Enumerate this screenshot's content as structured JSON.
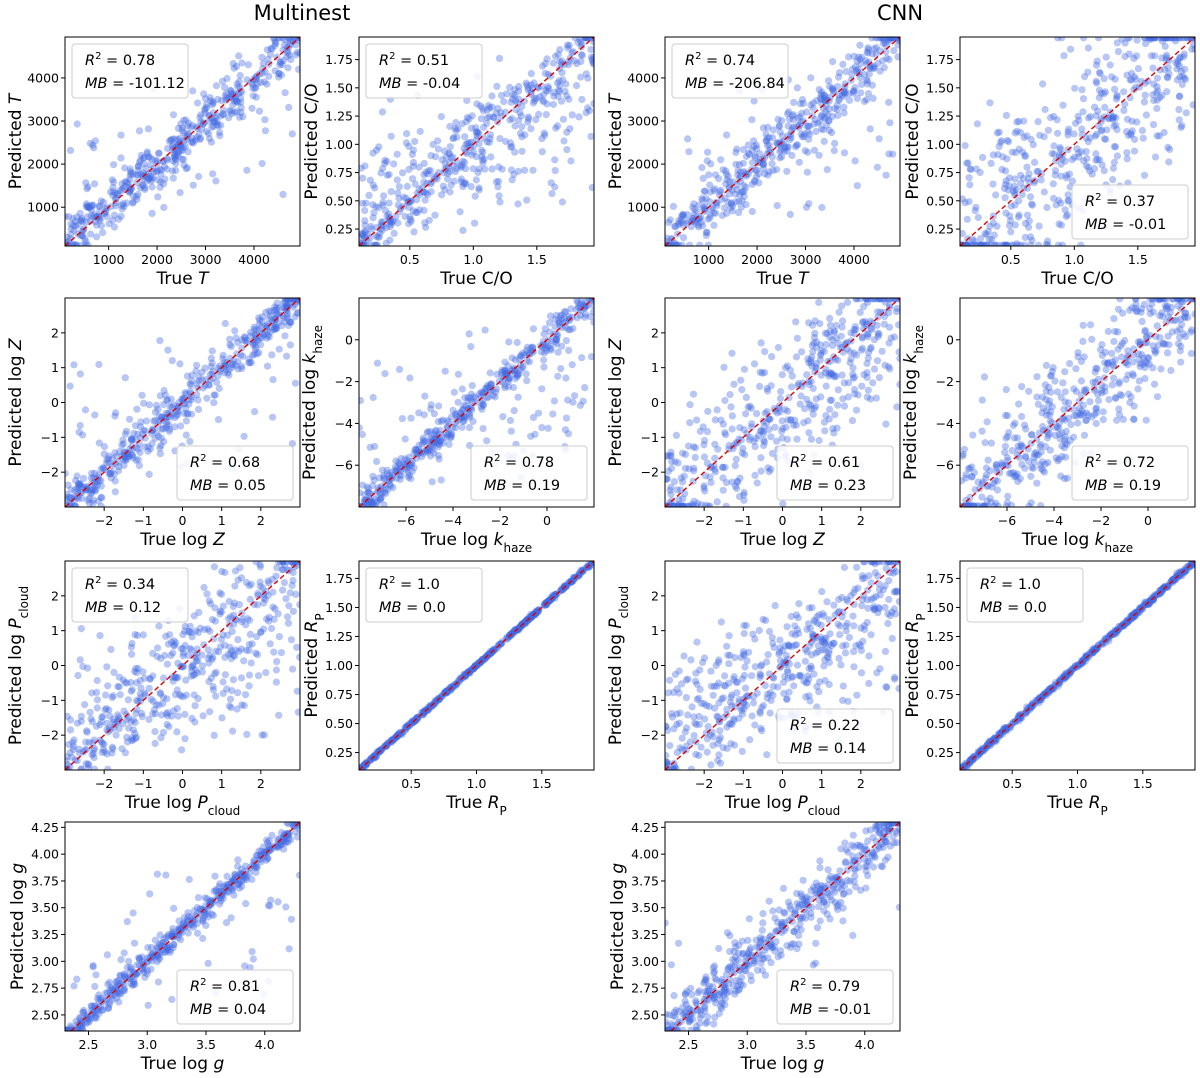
{
  "figure": {
    "group_titles": [
      "Multinest",
      "CNN"
    ],
    "point_color": "#4169e1",
    "diagonal_color": "#dd0000"
  },
  "chart_data": [
    {
      "type": "scatter",
      "group": "Multinest",
      "xlabel": "True T",
      "ylabel": "Predicted T",
      "xlim": [
        100,
        4950
      ],
      "ylim": [
        100,
        4950
      ],
      "xticks": [
        1000,
        2000,
        3000,
        4000
      ],
      "yticks": [
        1000,
        2000,
        3000,
        4000
      ],
      "tick_decimals": 0,
      "stats": {
        "r2": "0.78",
        "mb": "-101.12",
        "position": "top-left"
      },
      "spread": 0.06,
      "outliers": 0.14
    },
    {
      "type": "scatter",
      "group": "Multinest",
      "xlabel": "True C/O",
      "ylabel": "Predicted C/O",
      "xlim": [
        0.1,
        1.95
      ],
      "ylim": [
        0.1,
        1.95
      ],
      "xticks": [
        0.5,
        1.0,
        1.5
      ],
      "yticks": [
        0.25,
        0.5,
        0.75,
        1.0,
        1.25,
        1.5,
        1.75
      ],
      "tick_decimals": 2,
      "xtick_decimals": 1,
      "stats": {
        "r2": "0.51",
        "mb": "-0.04",
        "position": "top-left"
      },
      "spread": 0.08,
      "outliers": 0.35
    },
    {
      "type": "scatter",
      "group": "CNN",
      "xlabel": "True T",
      "ylabel": "Predicted T",
      "xlim": [
        100,
        4950
      ],
      "ylim": [
        100,
        4950
      ],
      "xticks": [
        1000,
        2000,
        3000,
        4000
      ],
      "yticks": [
        1000,
        2000,
        3000,
        4000
      ],
      "tick_decimals": 0,
      "stats": {
        "r2": "0.74",
        "mb": "-206.84",
        "position": "top-left"
      },
      "spread": 0.07,
      "outliers": 0.14
    },
    {
      "type": "scatter",
      "group": "CNN",
      "xlabel": "True C/O",
      "ylabel": "Predicted C/O",
      "xlim": [
        0.1,
        1.95
      ],
      "ylim": [
        0.1,
        1.95
      ],
      "xticks": [
        0.5,
        1.0,
        1.5
      ],
      "yticks": [
        0.25,
        0.5,
        0.75,
        1.0,
        1.25,
        1.5,
        1.75
      ],
      "tick_decimals": 2,
      "xtick_decimals": 1,
      "stats": {
        "r2": "0.37",
        "mb": "-0.01",
        "position": "bottom-right"
      },
      "spread": 0.22,
      "outliers": 0.1
    },
    {
      "type": "scatter",
      "group": "Multinest",
      "xlabel": "True log Z",
      "ylabel": "Predicted log Z",
      "xlim": [
        -3,
        3
      ],
      "ylim": [
        -3,
        3
      ],
      "xticks": [
        -2,
        -1,
        0,
        1,
        2
      ],
      "yticks": [
        -2,
        -1,
        0,
        1,
        2
      ],
      "tick_decimals": 0,
      "stats": {
        "r2": "0.68",
        "mb": "0.05",
        "position": "bottom-right"
      },
      "spread": 0.05,
      "outliers": 0.18
    },
    {
      "type": "scatter",
      "group": "Multinest",
      "xlabel": "True log k_haze",
      "ylabel": "Predicted log k_haze",
      "xlim": [
        -8,
        2
      ],
      "ylim": [
        -8,
        2
      ],
      "xticks": [
        -6,
        -4,
        -2,
        0
      ],
      "yticks": [
        -6,
        -4,
        -2,
        0
      ],
      "tick_decimals": 0,
      "stats": {
        "r2": "0.78",
        "mb": "0.19",
        "position": "bottom-right"
      },
      "spread": 0.04,
      "outliers": 0.2
    },
    {
      "type": "scatter",
      "group": "CNN",
      "xlabel": "True log Z",
      "ylabel": "Predicted log Z",
      "xlim": [
        -3,
        3
      ],
      "ylim": [
        -3,
        3
      ],
      "xticks": [
        -2,
        -1,
        0,
        1,
        2
      ],
      "yticks": [
        -2,
        -1,
        0,
        1,
        2
      ],
      "tick_decimals": 0,
      "stats": {
        "r2": "0.61",
        "mb": "0.23",
        "position": "bottom-right"
      },
      "spread": 0.16,
      "outliers": 0.08
    },
    {
      "type": "scatter",
      "group": "CNN",
      "xlabel": "True log k_haze",
      "ylabel": "Predicted log k_haze",
      "xlim": [
        -8,
        2
      ],
      "ylim": [
        -8,
        2
      ],
      "xticks": [
        -6,
        -4,
        -2,
        0
      ],
      "yticks": [
        -6,
        -4,
        -2,
        0
      ],
      "tick_decimals": 0,
      "stats": {
        "r2": "0.72",
        "mb": "0.19",
        "position": "bottom-right"
      },
      "spread": 0.14,
      "outliers": 0.06
    },
    {
      "type": "scatter",
      "group": "Multinest",
      "xlabel": "True log P_cloud",
      "ylabel": "Predicted log P_cloud",
      "xlim": [
        -3,
        3
      ],
      "ylim": [
        -3,
        3
      ],
      "xticks": [
        -2,
        -1,
        0,
        1,
        2
      ],
      "yticks": [
        -2,
        -1,
        0,
        1,
        2
      ],
      "tick_decimals": 0,
      "stats": {
        "r2": "0.34",
        "mb": "0.12",
        "position": "top-left"
      },
      "spread": 0.12,
      "outliers": 0.4
    },
    {
      "type": "scatter",
      "group": "Multinest",
      "xlabel": "True R_P",
      "ylabel": "Predicted R_P",
      "xlim": [
        0.1,
        1.9
      ],
      "ylim": [
        0.1,
        1.9
      ],
      "xticks": [
        0.5,
        1.0,
        1.5
      ],
      "yticks": [
        0.25,
        0.5,
        0.75,
        1.0,
        1.25,
        1.5,
        1.75
      ],
      "tick_decimals": 2,
      "xtick_decimals": 1,
      "stats": {
        "r2": "1.0",
        "mb": "0.0",
        "position": "top-left"
      },
      "spread": 0.004,
      "outliers": 0
    },
    {
      "type": "scatter",
      "group": "CNN",
      "xlabel": "True log P_cloud",
      "ylabel": "Predicted log P_cloud",
      "xlim": [
        -3,
        3
      ],
      "ylim": [
        -3,
        3
      ],
      "xticks": [
        -2,
        -1,
        0,
        1,
        2
      ],
      "yticks": [
        -2,
        -1,
        0,
        1,
        2
      ],
      "tick_decimals": 0,
      "stats": {
        "r2": "0.22",
        "mb": "0.14",
        "position": "bottom-right"
      },
      "spread": 0.12,
      "outliers": 0.5
    },
    {
      "type": "scatter",
      "group": "CNN",
      "xlabel": "True R_P",
      "ylabel": "Predicted R_P",
      "xlim": [
        0.1,
        1.9
      ],
      "ylim": [
        0.1,
        1.9
      ],
      "xticks": [
        0.5,
        1.0,
        1.5
      ],
      "yticks": [
        0.25,
        0.5,
        0.75,
        1.0,
        1.25,
        1.5,
        1.75
      ],
      "tick_decimals": 2,
      "xtick_decimals": 1,
      "stats": {
        "r2": "1.0",
        "mb": "0.0",
        "position": "top-left"
      },
      "spread": 0.006,
      "outliers": 0
    },
    {
      "type": "scatter",
      "group": "Multinest",
      "xlabel": "True log g",
      "ylabel": "Predicted log g",
      "xlim": [
        2.3,
        4.3
      ],
      "ylim": [
        2.35,
        4.3
      ],
      "xticks": [
        2.5,
        3.0,
        3.5,
        4.0
      ],
      "yticks": [
        2.5,
        2.75,
        3.0,
        3.25,
        3.5,
        3.75,
        4.0,
        4.25
      ],
      "tick_decimals": 2,
      "xtick_decimals": 1,
      "stats": {
        "r2": "0.81",
        "mb": "0.04",
        "position": "bottom-right"
      },
      "spread": 0.03,
      "outliers": 0.12
    },
    {
      "type": "scatter",
      "group": "CNN",
      "xlabel": "True log g",
      "ylabel": "Predicted log g",
      "xlim": [
        2.3,
        4.3
      ],
      "ylim": [
        2.35,
        4.3
      ],
      "xticks": [
        2.5,
        3.0,
        3.5,
        4.0
      ],
      "yticks": [
        2.5,
        2.75,
        3.0,
        3.25,
        3.5,
        3.75,
        4.0,
        4.25
      ],
      "tick_decimals": 2,
      "xtick_decimals": 1,
      "stats": {
        "r2": "0.79",
        "mb": "-0.01",
        "position": "bottom-right"
      },
      "spread": 0.07,
      "outliers": 0.06
    }
  ]
}
